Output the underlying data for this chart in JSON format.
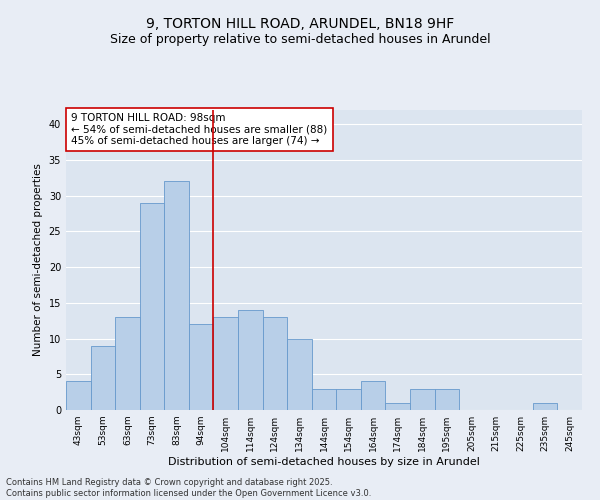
{
  "title1": "9, TORTON HILL ROAD, ARUNDEL, BN18 9HF",
  "title2": "Size of property relative to semi-detached houses in Arundel",
  "xlabel": "Distribution of semi-detached houses by size in Arundel",
  "ylabel": "Number of semi-detached properties",
  "bar_labels": [
    "43sqm",
    "53sqm",
    "63sqm",
    "73sqm",
    "83sqm",
    "94sqm",
    "104sqm",
    "114sqm",
    "124sqm",
    "134sqm",
    "144sqm",
    "154sqm",
    "164sqm",
    "174sqm",
    "184sqm",
    "195sqm",
    "205sqm",
    "215sqm",
    "225sqm",
    "235sqm",
    "245sqm"
  ],
  "bar_values": [
    4,
    9,
    13,
    29,
    32,
    12,
    13,
    14,
    13,
    10,
    3,
    3,
    4,
    1,
    3,
    3,
    0,
    0,
    0,
    1,
    0
  ],
  "bar_color": "#b8cfe8",
  "bar_edge_color": "#6699cc",
  "vline_x": 5.5,
  "vline_color": "#cc0000",
  "annotation_text": "9 TORTON HILL ROAD: 98sqm\n← 54% of semi-detached houses are smaller (88)\n45% of semi-detached houses are larger (74) →",
  "annotation_box_color": "#ffffff",
  "annotation_box_edge": "#cc0000",
  "ylim": [
    0,
    42
  ],
  "yticks": [
    0,
    5,
    10,
    15,
    20,
    25,
    30,
    35,
    40
  ],
  "bg_color": "#e8edf5",
  "plot_bg_color": "#dce5f0",
  "grid_color": "#ffffff",
  "footer_text": "Contains HM Land Registry data © Crown copyright and database right 2025.\nContains public sector information licensed under the Open Government Licence v3.0.",
  "title1_fontsize": 10,
  "title2_fontsize": 9,
  "xlabel_fontsize": 8,
  "ylabel_fontsize": 7.5,
  "tick_fontsize": 6.5,
  "annotation_fontsize": 7.5,
  "footer_fontsize": 6
}
